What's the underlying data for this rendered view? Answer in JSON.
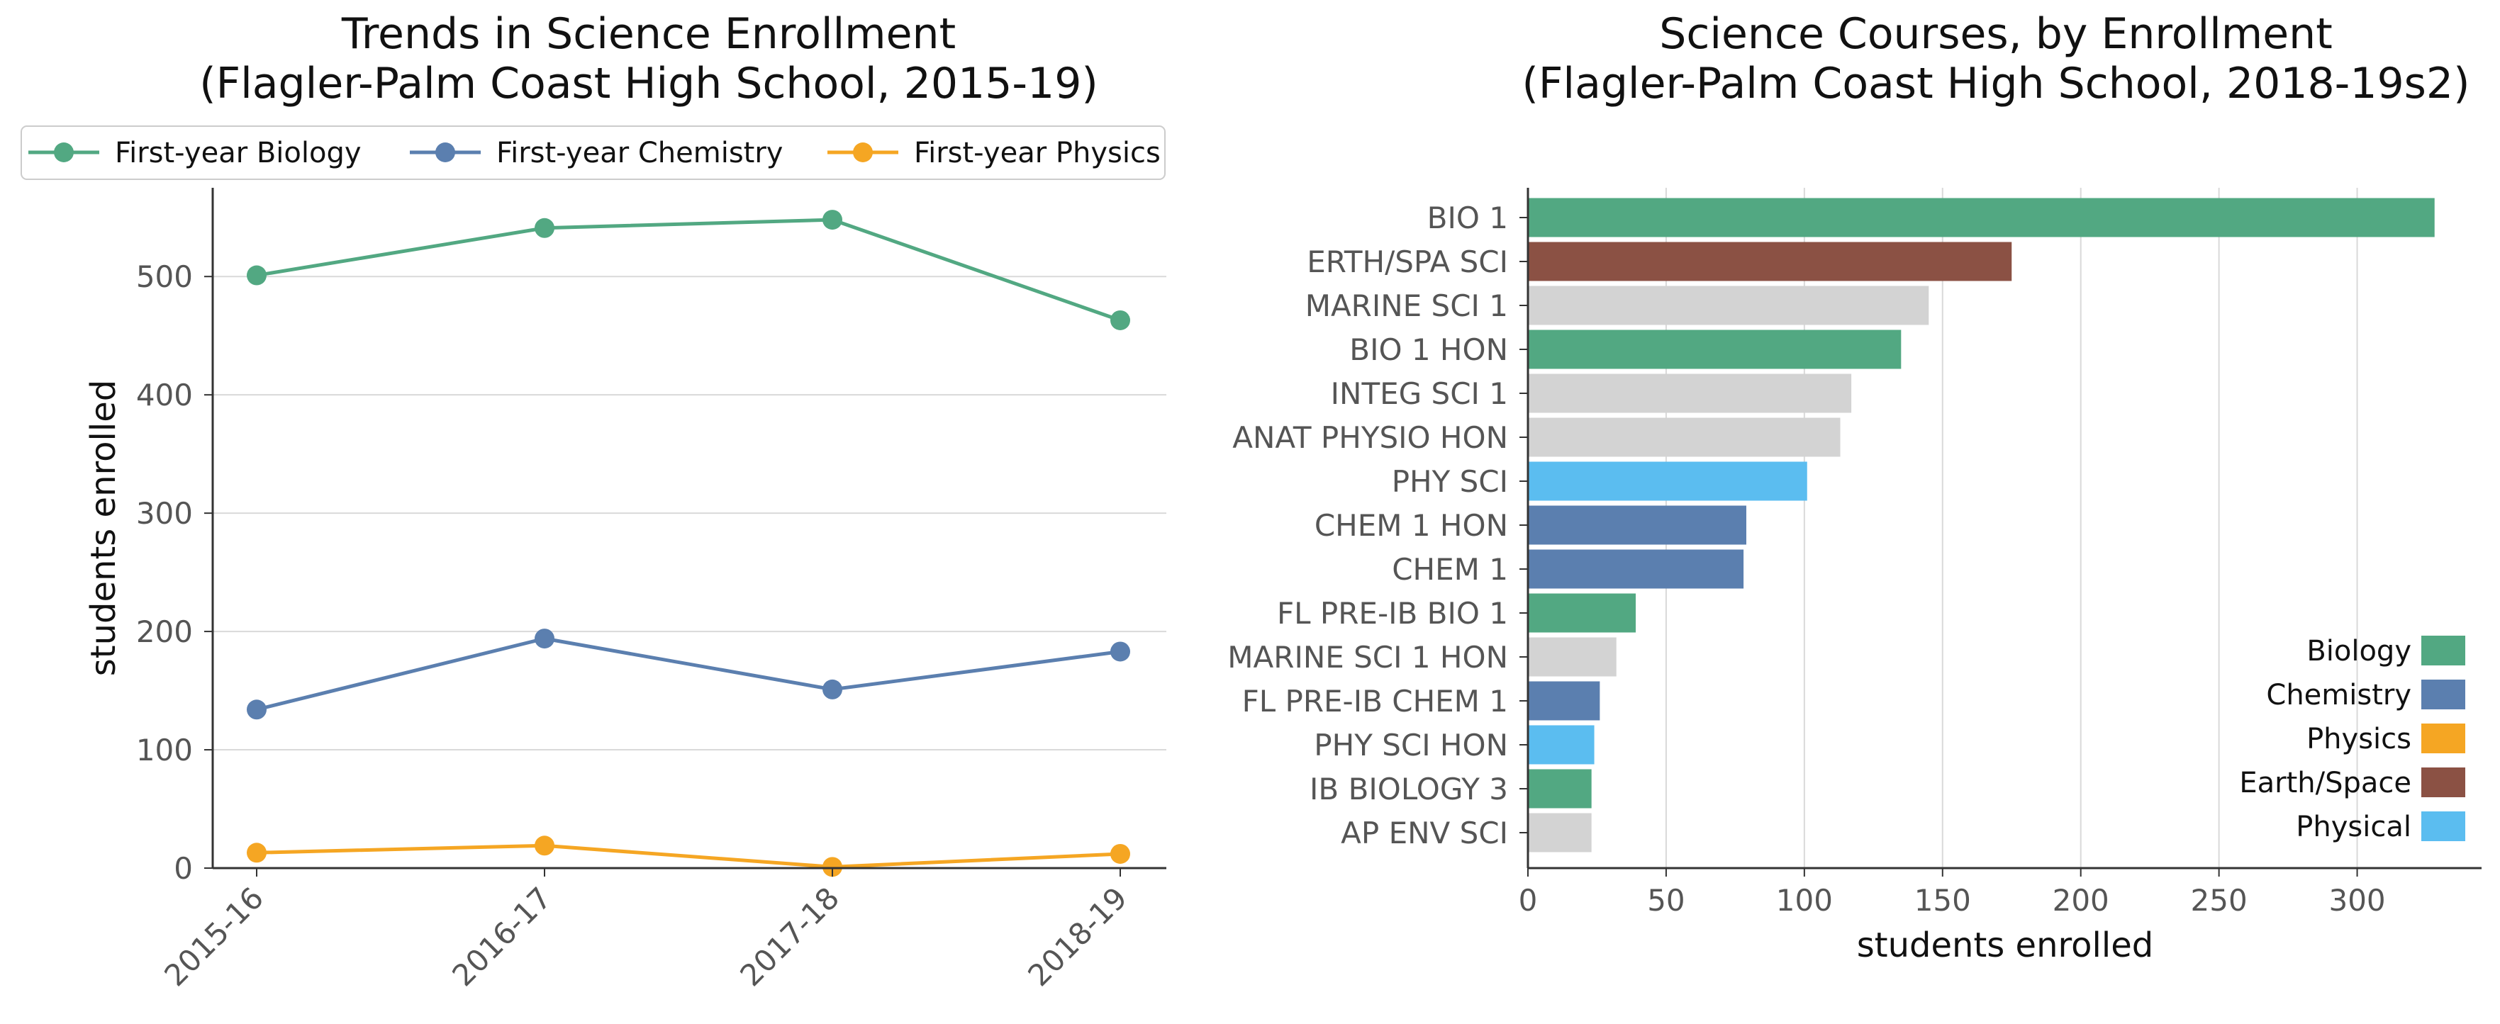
{
  "chart_data": [
    {
      "type": "line",
      "title": "Trends in Science Enrollment",
      "subtitle": "(Flagler-Palm Coast High School, 2015-19)",
      "xlabel": "",
      "ylabel": "students enrolled",
      "x": [
        "2015-16",
        "2016-17",
        "2017-18",
        "2018-19"
      ],
      "yticks": [
        "0",
        "100",
        "200",
        "300",
        "400",
        "500"
      ],
      "ylim": [
        0,
        575
      ],
      "grid": "horizontal",
      "legend_position": "top",
      "series": [
        {
          "name": "First-year Biology",
          "color": "#52a882",
          "values": [
            501,
            541,
            548,
            463
          ]
        },
        {
          "name": "First-year Chemistry",
          "color": "#5b7faf",
          "values": [
            134,
            194,
            151,
            183
          ]
        },
        {
          "name": "First-year Physics",
          "color": "#f5a623",
          "values": [
            13,
            19,
            1,
            12
          ]
        }
      ]
    },
    {
      "type": "bar",
      "orientation": "horizontal",
      "title": "Science Courses, by Enrollment",
      "subtitle": "(Flagler-Palm Coast High School, 2018-19s2)",
      "xlabel": "students enrolled",
      "ylabel": "",
      "xticks": [
        "0",
        "50",
        "100",
        "150",
        "200",
        "250",
        "300"
      ],
      "xlim": [
        0,
        345
      ],
      "grid": "vertical",
      "legend_position": "lower-right",
      "categories": [
        "BIO 1",
        "ERTH/SPA SCI",
        "MARINE SCI 1",
        "BIO 1 HON",
        "INTEG SCI 1",
        "ANAT PHYSIO HON",
        "PHY SCI",
        "CHEM 1 HON",
        "CHEM 1",
        "FL PRE-IB BIO 1",
        "MARINE SCI 1 HON",
        "FL PRE-IB CHEM 1",
        "PHY SCI HON",
        "IB BIOLOGY 3",
        "AP ENV SCI"
      ],
      "values": [
        328,
        175,
        145,
        135,
        117,
        113,
        101,
        79,
        78,
        39,
        32,
        26,
        24,
        23,
        23
      ],
      "colors": [
        "#52a882",
        "#8b5144",
        "#d3d3d3",
        "#52a882",
        "#d3d3d3",
        "#d3d3d3",
        "#5bbdf0",
        "#5b7faf",
        "#5b7faf",
        "#52a882",
        "#d3d3d3",
        "#5b7faf",
        "#5bbdf0",
        "#52a882",
        "#d3d3d3"
      ],
      "legend": [
        {
          "name": "Biology",
          "color": "#52a882"
        },
        {
          "name": "Chemistry",
          "color": "#5b7faf"
        },
        {
          "name": "Physics",
          "color": "#f5a623"
        },
        {
          "name": "Earth/Space",
          "color": "#8b5144"
        },
        {
          "name": "Physical",
          "color": "#5bbdf0"
        }
      ]
    }
  ]
}
